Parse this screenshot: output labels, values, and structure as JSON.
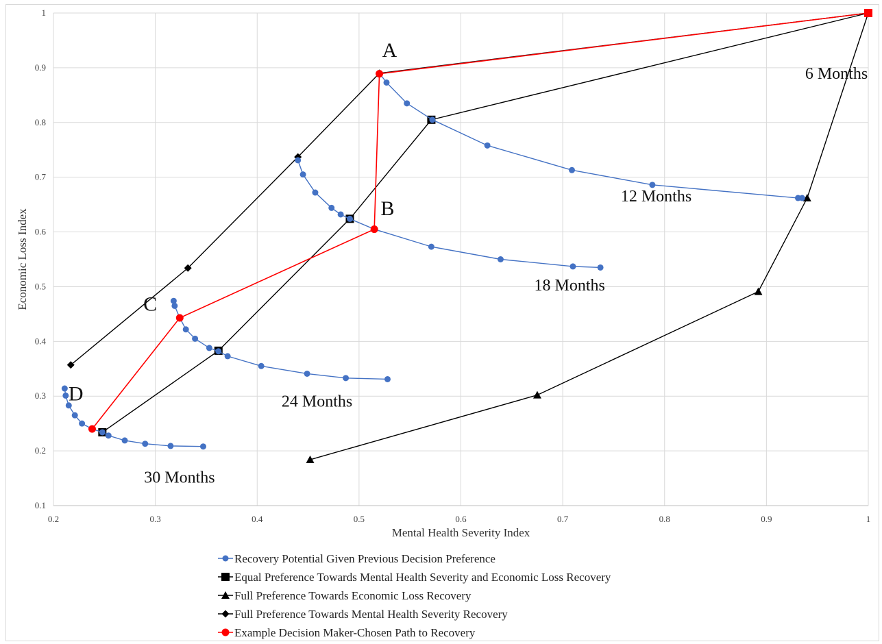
{
  "chart_data": {
    "type": "line",
    "xlabel": "Mental Health Severity Index",
    "ylabel": "Economic Loss Index",
    "xlim": [
      0.2,
      1
    ],
    "ylim": [
      0.1,
      1
    ],
    "x_ticks": [
      "0.2",
      "0.3",
      "0.4",
      "0.5",
      "0.6",
      "0.7",
      "0.8",
      "0.9",
      "1"
    ],
    "y_ticks": [
      "0.1",
      "0.2",
      "0.3",
      "0.4",
      "0.5",
      "0.6",
      "0.7",
      "0.8",
      "0.9",
      "1"
    ],
    "grid": true,
    "legend_position": "bottom",
    "series": [
      {
        "name": "Recovery Potential Given Previous Decision Preference",
        "color": "#4472c4",
        "marker": "circle",
        "segments": [
          [
            [
              0.52,
              0.89
            ],
            [
              0.527,
              0.873
            ],
            [
              0.547,
              0.835
            ],
            [
              0.572,
              0.805
            ],
            [
              0.626,
              0.758
            ],
            [
              0.709,
              0.713
            ],
            [
              0.788,
              0.686
            ],
            [
              0.931,
              0.662
            ],
            [
              0.935,
              0.662
            ]
          ],
          [
            [
              0.44,
              0.731
            ],
            [
              0.445,
              0.705
            ],
            [
              0.457,
              0.672
            ],
            [
              0.473,
              0.644
            ],
            [
              0.482,
              0.632
            ],
            [
              0.491,
              0.624
            ],
            [
              0.515,
              0.605
            ],
            [
              0.571,
              0.573
            ],
            [
              0.639,
              0.55
            ],
            [
              0.71,
              0.537
            ],
            [
              0.737,
              0.535
            ]
          ],
          [
            [
              0.318,
              0.474
            ],
            [
              0.319,
              0.465
            ],
            [
              0.324,
              0.443
            ],
            [
              0.33,
              0.422
            ],
            [
              0.339,
              0.405
            ],
            [
              0.353,
              0.388
            ],
            [
              0.362,
              0.382
            ],
            [
              0.371,
              0.373
            ],
            [
              0.404,
              0.355
            ],
            [
              0.449,
              0.341
            ],
            [
              0.487,
              0.333
            ],
            [
              0.528,
              0.331
            ]
          ],
          [
            [
              0.211,
              0.314
            ],
            [
              0.212,
              0.301
            ],
            [
              0.215,
              0.283
            ],
            [
              0.221,
              0.265
            ],
            [
              0.228,
              0.25
            ],
            [
              0.238,
              0.24
            ],
            [
              0.248,
              0.234
            ],
            [
              0.254,
              0.228
            ],
            [
              0.27,
              0.219
            ],
            [
              0.29,
              0.213
            ],
            [
              0.315,
              0.209
            ],
            [
              0.347,
              0.208
            ]
          ]
        ]
      },
      {
        "name": "Equal Preference Towards Mental Health Severity and Economic Loss Recovery",
        "color": "#000000",
        "marker": "square",
        "points": [
          [
            1.0,
            1.0
          ],
          [
            0.571,
            0.805
          ],
          [
            0.491,
            0.624
          ],
          [
            0.362,
            0.383
          ],
          [
            0.248,
            0.234
          ]
        ]
      },
      {
        "name": "Full Preference Towards Economic Loss Recovery",
        "color": "#000000",
        "marker": "triangle",
        "points": [
          [
            1.0,
            1.0
          ],
          [
            0.94,
            0.662
          ],
          [
            0.892,
            0.491
          ],
          [
            0.675,
            0.302
          ],
          [
            0.452,
            0.184
          ]
        ]
      },
      {
        "name": "Full Preference Towards Mental Health Severity Recovery",
        "color": "#000000",
        "marker": "diamond",
        "points": [
          [
            1.0,
            1.0
          ],
          [
            0.52,
            0.89
          ],
          [
            0.44,
            0.737
          ],
          [
            0.332,
            0.534
          ],
          [
            0.217,
            0.357
          ]
        ]
      },
      {
        "name": "Example Decision Maker-Chosen Path to Recovery",
        "color": "#ff0000",
        "marker": "circle",
        "points": [
          [
            1.0,
            1.0
          ],
          [
            0.52,
            0.889
          ],
          [
            0.515,
            0.605
          ],
          [
            0.324,
            0.443
          ],
          [
            0.238,
            0.24
          ]
        ]
      }
    ],
    "annotations": [
      {
        "text": "A",
        "x": 0.53,
        "y": 0.92,
        "kind": "letter"
      },
      {
        "text": "B",
        "x": 0.528,
        "y": 0.631,
        "kind": "letter"
      },
      {
        "text": "C",
        "x": 0.295,
        "y": 0.456,
        "kind": "letter"
      },
      {
        "text": "D",
        "x": 0.222,
        "y": 0.292,
        "kind": "letter"
      },
      {
        "text": "6 Months",
        "x": 0.938,
        "y": 0.88,
        "kind": "label"
      },
      {
        "text": "12 Months",
        "x": 0.757,
        "y": 0.656,
        "kind": "label"
      },
      {
        "text": "18 Months",
        "x": 0.672,
        "y": 0.493,
        "kind": "label"
      },
      {
        "text": "24 Months",
        "x": 0.424,
        "y": 0.281,
        "kind": "label"
      },
      {
        "text": "30 Months",
        "x": 0.289,
        "y": 0.142,
        "kind": "label"
      }
    ]
  }
}
